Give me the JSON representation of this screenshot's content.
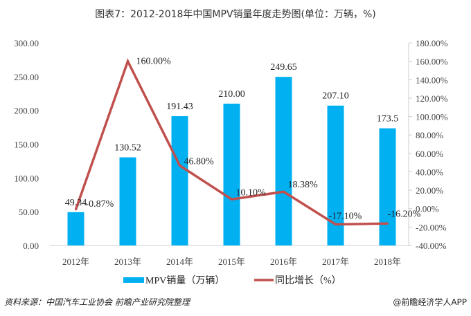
{
  "chart_data": {
    "type": "bar+line",
    "title": "图表7：2012-2018年中国MPV销量年度走势图(单位：万辆，%)",
    "categories": [
      "2012年",
      "2013年",
      "2014年",
      "2015年",
      "2016年",
      "2017年",
      "2018年"
    ],
    "series": [
      {
        "name": "MPV销量（万辆）",
        "type": "bar",
        "axis": "left",
        "color": "#00B0F0",
        "values": [
          49.34,
          130.52,
          191.43,
          210.0,
          249.65,
          207.1,
          173.5
        ],
        "labels": [
          "49.34",
          "130.52",
          "191.43",
          "210.00",
          "249.65",
          "207.10",
          "173.5"
        ]
      },
      {
        "name": "同比增长（%）",
        "type": "line",
        "axis": "right",
        "color": "#C0504D",
        "values": [
          -0.87,
          160.0,
          46.8,
          10.1,
          18.38,
          -17.1,
          -16.2
        ],
        "labels": [
          "-0.87%",
          "160.00%",
          "46.80%",
          "10.10%",
          "18.38%",
          "-17.10%",
          "-16.20%"
        ]
      }
    ],
    "left_axis": {
      "ylim": [
        0,
        300
      ],
      "ticks": [
        "0.00",
        "50.00",
        "100.00",
        "150.00",
        "200.00",
        "250.00",
        "300.00"
      ]
    },
    "right_axis": {
      "ylim": [
        -40,
        180
      ],
      "ticks": [
        "-40.00%",
        "-20.00%",
        "0.00%",
        "20.00%",
        "40.00%",
        "60.00%",
        "80.00%",
        "100.00%",
        "120.00%",
        "140.00%",
        "160.00%",
        "180.00%"
      ]
    },
    "legend_position": "bottom"
  },
  "footer": {
    "source": "资料来源：中国汽车工业协会 前瞻产业研究院整理",
    "credit": "@前瞻经济学人APP"
  }
}
